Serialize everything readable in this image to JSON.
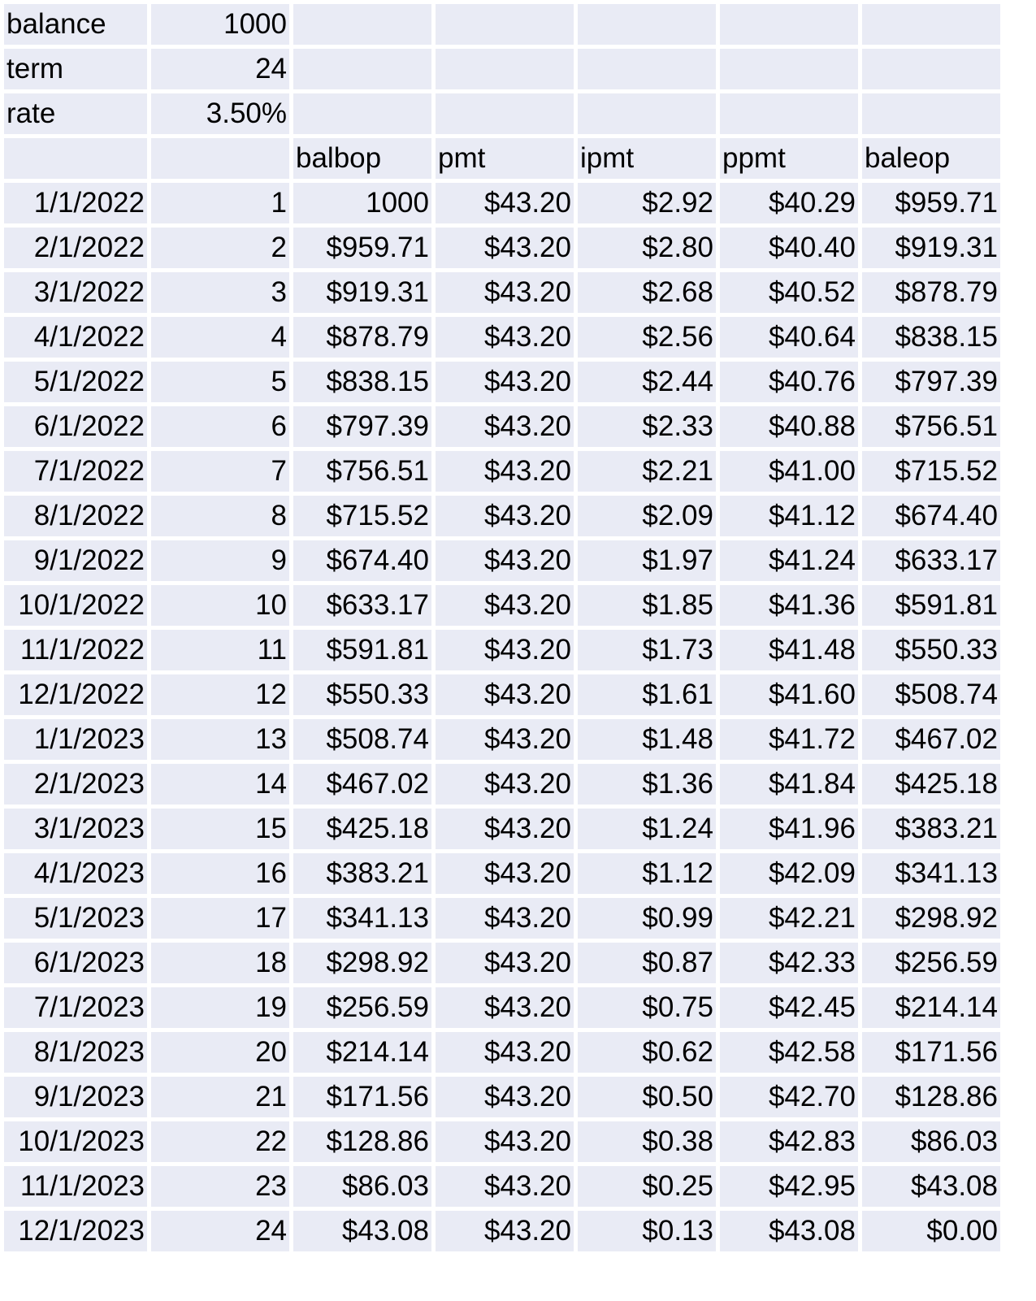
{
  "inputs": [
    {
      "label": "balance",
      "value": "1000"
    },
    {
      "label": "term",
      "value": "24"
    },
    {
      "label": "rate",
      "value": "3.50%"
    }
  ],
  "columns": [
    "balbop",
    "pmt",
    "ipmt",
    "ppmt",
    "baleop"
  ],
  "rows": [
    [
      "1/1/2022",
      "1",
      "1000",
      "$43.20",
      "$2.92",
      "$40.29",
      "$959.71"
    ],
    [
      "2/1/2022",
      "2",
      "$959.71",
      "$43.20",
      "$2.80",
      "$40.40",
      "$919.31"
    ],
    [
      "3/1/2022",
      "3",
      "$919.31",
      "$43.20",
      "$2.68",
      "$40.52",
      "$878.79"
    ],
    [
      "4/1/2022",
      "4",
      "$878.79",
      "$43.20",
      "$2.56",
      "$40.64",
      "$838.15"
    ],
    [
      "5/1/2022",
      "5",
      "$838.15",
      "$43.20",
      "$2.44",
      "$40.76",
      "$797.39"
    ],
    [
      "6/1/2022",
      "6",
      "$797.39",
      "$43.20",
      "$2.33",
      "$40.88",
      "$756.51"
    ],
    [
      "7/1/2022",
      "7",
      "$756.51",
      "$43.20",
      "$2.21",
      "$41.00",
      "$715.52"
    ],
    [
      "8/1/2022",
      "8",
      "$715.52",
      "$43.20",
      "$2.09",
      "$41.12",
      "$674.40"
    ],
    [
      "9/1/2022",
      "9",
      "$674.40",
      "$43.20",
      "$1.97",
      "$41.24",
      "$633.17"
    ],
    [
      "10/1/2022",
      "10",
      "$633.17",
      "$43.20",
      "$1.85",
      "$41.36",
      "$591.81"
    ],
    [
      "11/1/2022",
      "11",
      "$591.81",
      "$43.20",
      "$1.73",
      "$41.48",
      "$550.33"
    ],
    [
      "12/1/2022",
      "12",
      "$550.33",
      "$43.20",
      "$1.61",
      "$41.60",
      "$508.74"
    ],
    [
      "1/1/2023",
      "13",
      "$508.74",
      "$43.20",
      "$1.48",
      "$41.72",
      "$467.02"
    ],
    [
      "2/1/2023",
      "14",
      "$467.02",
      "$43.20",
      "$1.36",
      "$41.84",
      "$425.18"
    ],
    [
      "3/1/2023",
      "15",
      "$425.18",
      "$43.20",
      "$1.24",
      "$41.96",
      "$383.21"
    ],
    [
      "4/1/2023",
      "16",
      "$383.21",
      "$43.20",
      "$1.12",
      "$42.09",
      "$341.13"
    ],
    [
      "5/1/2023",
      "17",
      "$341.13",
      "$43.20",
      "$0.99",
      "$42.21",
      "$298.92"
    ],
    [
      "6/1/2023",
      "18",
      "$298.92",
      "$43.20",
      "$0.87",
      "$42.33",
      "$256.59"
    ],
    [
      "7/1/2023",
      "19",
      "$256.59",
      "$43.20",
      "$0.75",
      "$42.45",
      "$214.14"
    ],
    [
      "8/1/2023",
      "20",
      "$214.14",
      "$43.20",
      "$0.62",
      "$42.58",
      "$171.56"
    ],
    [
      "9/1/2023",
      "21",
      "$171.56",
      "$43.20",
      "$0.50",
      "$42.70",
      "$128.86"
    ],
    [
      "10/1/2023",
      "22",
      "$128.86",
      "$43.20",
      "$0.38",
      "$42.83",
      "$86.03"
    ],
    [
      "11/1/2023",
      "23",
      "$86.03",
      "$43.20",
      "$0.25",
      "$42.95",
      "$43.08"
    ],
    [
      "12/1/2023",
      "24",
      "$43.08",
      "$43.20",
      "$0.13",
      "$43.08",
      "$0.00"
    ]
  ],
  "colors": {
    "cell_fill": "#e9ebf5",
    "gridline": "#ffffff",
    "text": "#000000"
  }
}
